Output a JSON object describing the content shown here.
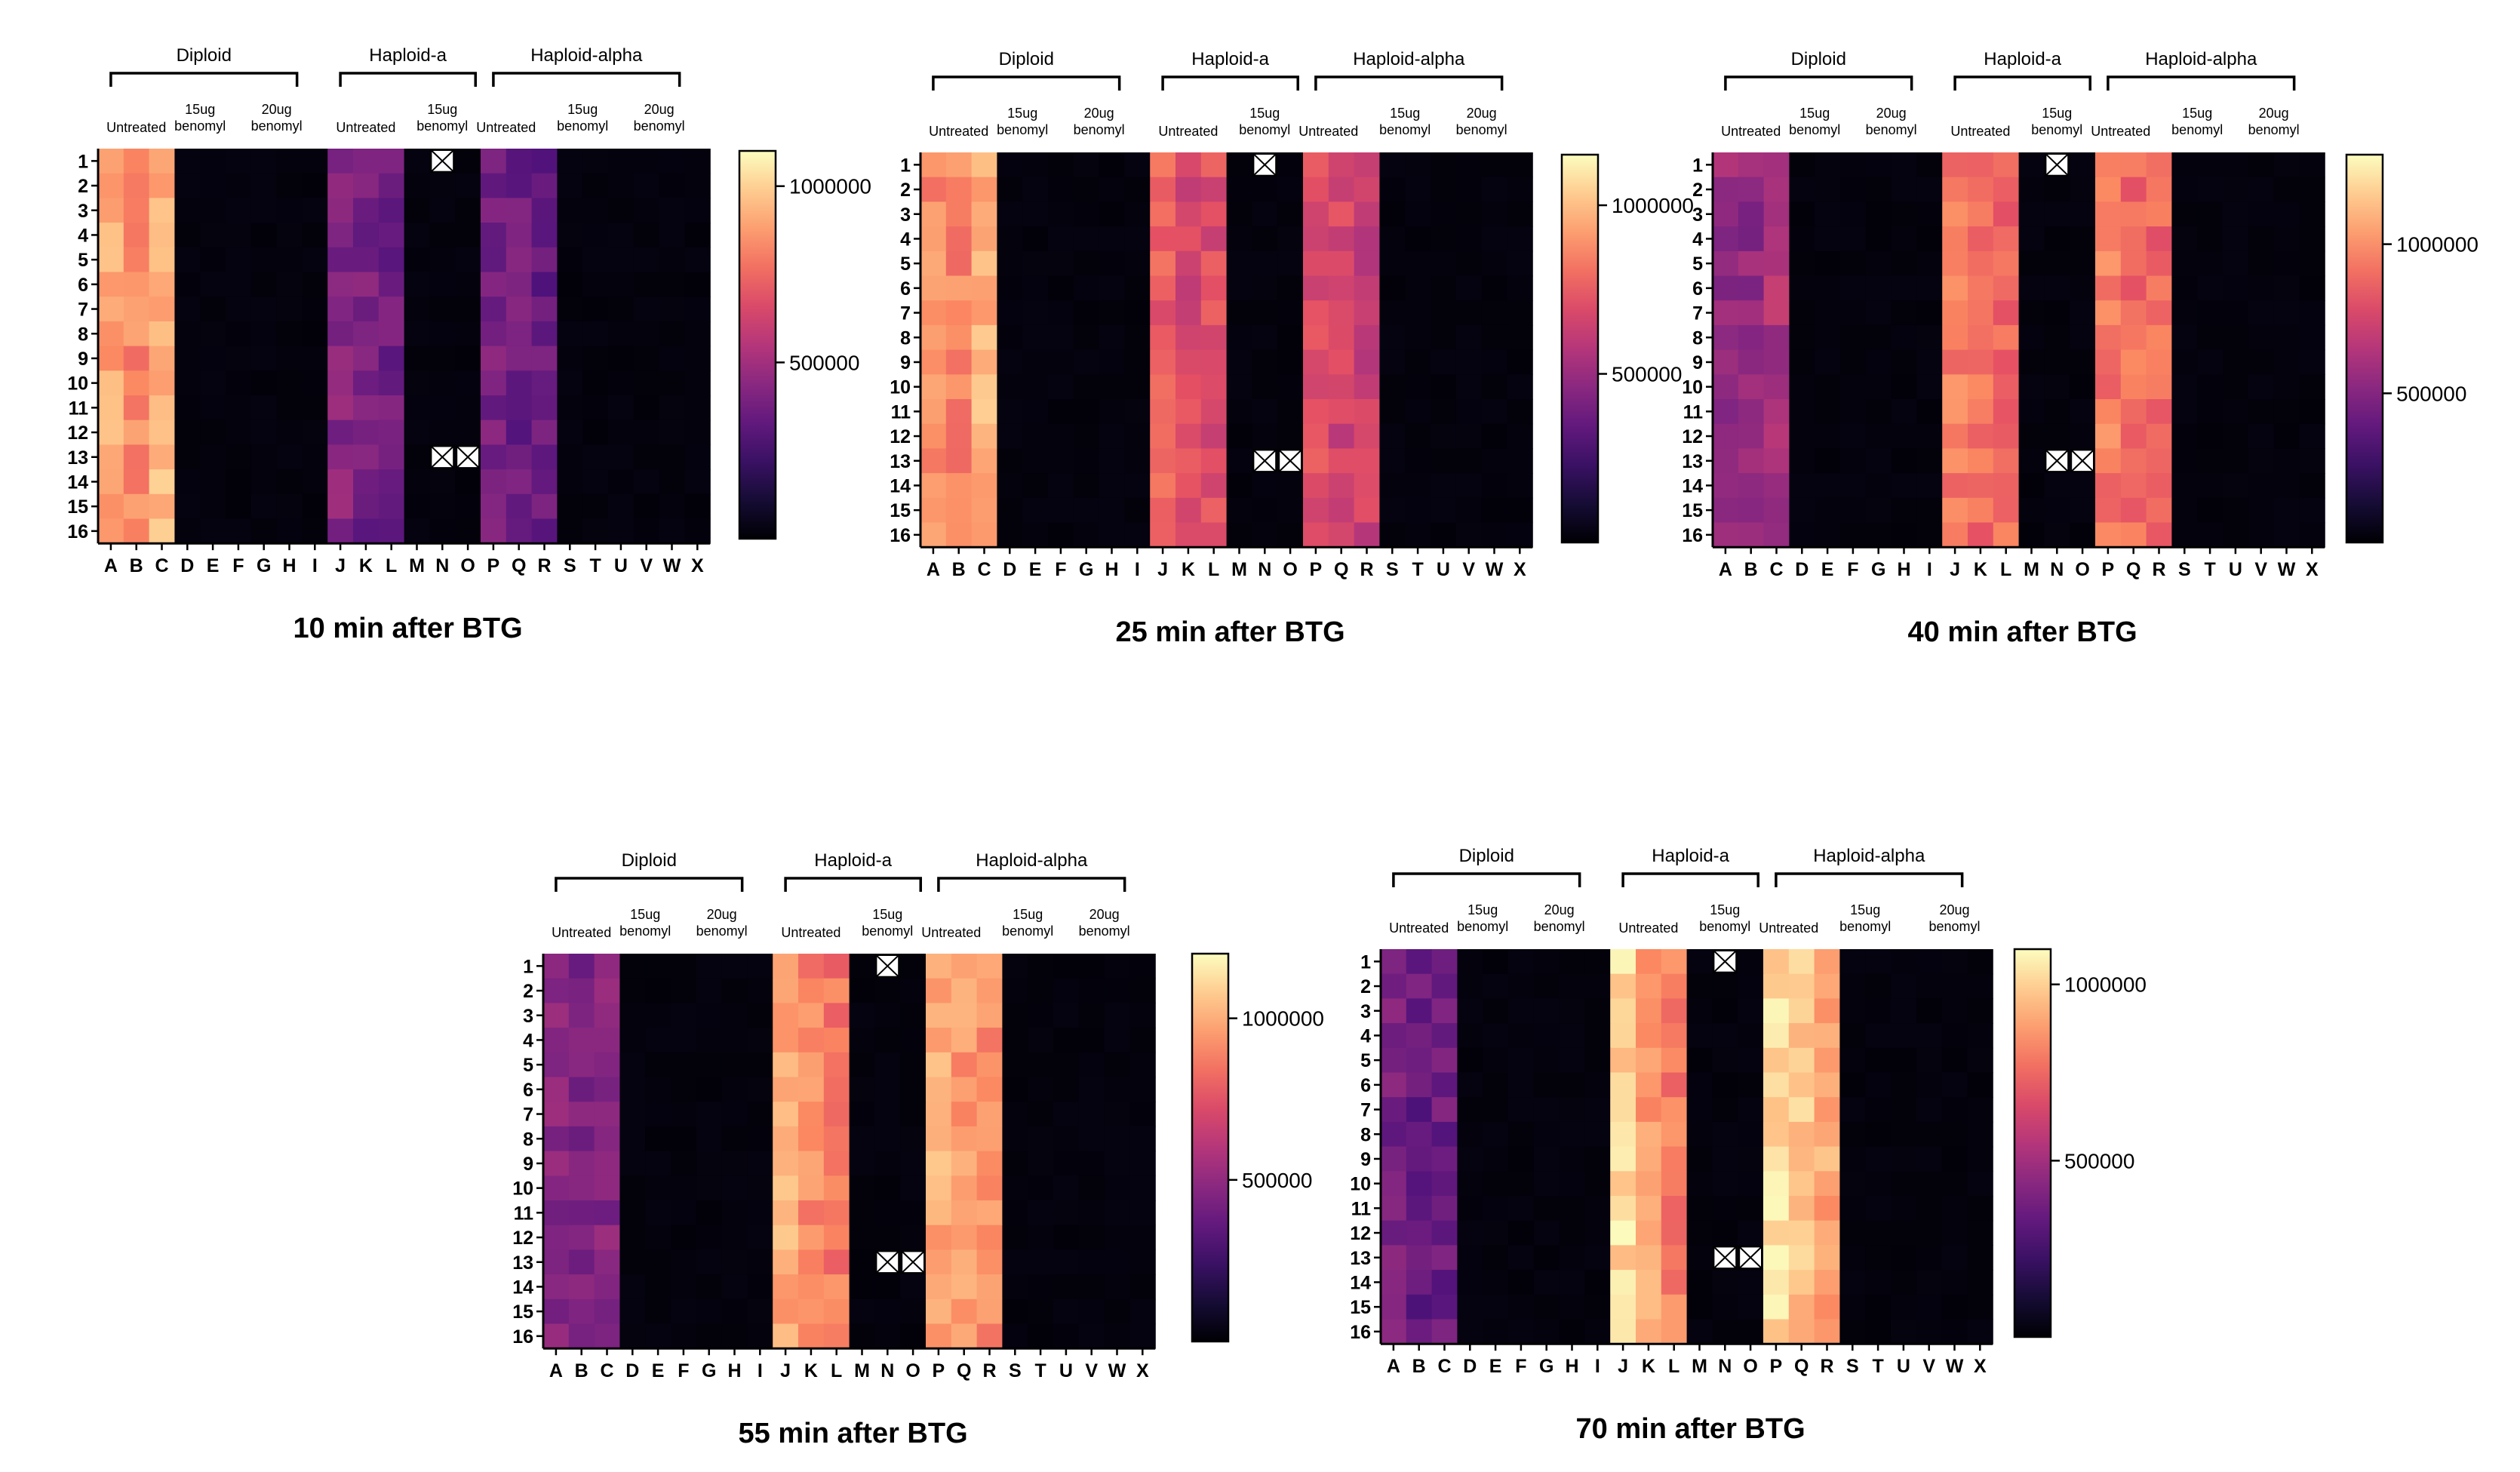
{
  "chart_data": [
    {
      "type": "heatmap",
      "title": "10 min after BTG",
      "groups": [
        {
          "label": "Diploid",
          "cols": [
            "A",
            "H"
          ]
        },
        {
          "label": "Haploid-a",
          "cols": [
            "J",
            "O"
          ]
        },
        {
          "label": "Haploid-alpha",
          "cols": [
            "P",
            "W"
          ]
        }
      ],
      "conditions": [
        {
          "text": "Untreated",
          "cols": [
            "A",
            "C"
          ]
        },
        {
          "text": "15ug benomyl",
          "cols": [
            "D",
            "E"
          ]
        },
        {
          "text": "20ug benomyl",
          "cols": [
            "G",
            "H"
          ]
        },
        {
          "text": "Untreated",
          "cols": [
            "J",
            "L"
          ]
        },
        {
          "text": "15ug benomyl",
          "cols": [
            "N",
            "N"
          ]
        },
        {
          "text": "Untreated",
          "cols": [
            "P",
            "Q"
          ]
        },
        {
          "text": "15ug benomyl",
          "cols": [
            "S",
            "T"
          ]
        },
        {
          "text": "20ug benomyl",
          "cols": [
            "V",
            "W"
          ]
        }
      ],
      "rows": [
        "1",
        "2",
        "3",
        "4",
        "5",
        "6",
        "7",
        "8",
        "9",
        "10",
        "11",
        "12",
        "13",
        "14",
        "15",
        "16"
      ],
      "columns": [
        "A",
        "B",
        "C",
        "D",
        "E",
        "F",
        "G",
        "H",
        "I",
        "J",
        "K",
        "L",
        "M",
        "N",
        "O",
        "P",
        "Q",
        "R",
        "S",
        "T",
        "U",
        "V",
        "W",
        "X"
      ],
      "column_levels": [
        900000,
        820000,
        940000,
        0,
        0,
        0,
        0,
        0,
        0,
        420000,
        380000,
        360000,
        0,
        0,
        0,
        380000,
        360000,
        340000,
        0,
        0,
        0,
        0,
        0,
        0
      ],
      "excluded_cells": [
        [
          "1",
          "N"
        ],
        [
          "13",
          "N"
        ],
        [
          "13",
          "O"
        ]
      ],
      "colorbar": {
        "ticks": [
          500000,
          1000000
        ],
        "max": 1100000
      }
    },
    {
      "type": "heatmap",
      "title": "25 min after BTG",
      "groups": [
        {
          "label": "Diploid",
          "cols": [
            "A",
            "H"
          ]
        },
        {
          "label": "Haploid-a",
          "cols": [
            "J",
            "O"
          ]
        },
        {
          "label": "Haploid-alpha",
          "cols": [
            "P",
            "W"
          ]
        }
      ],
      "conditions": [
        {
          "text": "Untreated",
          "cols": [
            "A",
            "C"
          ]
        },
        {
          "text": "15ug benomyl",
          "cols": [
            "D",
            "E"
          ]
        },
        {
          "text": "20ug benomyl",
          "cols": [
            "G",
            "H"
          ]
        },
        {
          "text": "Untreated",
          "cols": [
            "J",
            "L"
          ]
        },
        {
          "text": "15ug benomyl",
          "cols": [
            "N",
            "N"
          ]
        },
        {
          "text": "Untreated",
          "cols": [
            "P",
            "Q"
          ]
        },
        {
          "text": "15ug benomyl",
          "cols": [
            "S",
            "T"
          ]
        },
        {
          "text": "20ug benomyl",
          "cols": [
            "V",
            "W"
          ]
        }
      ],
      "rows": [
        "1",
        "2",
        "3",
        "4",
        "5",
        "6",
        "7",
        "8",
        "9",
        "10",
        "11",
        "12",
        "13",
        "14",
        "15",
        "16"
      ],
      "columns": [
        "A",
        "B",
        "C",
        "D",
        "E",
        "F",
        "G",
        "H",
        "I",
        "J",
        "K",
        "L",
        "M",
        "N",
        "O",
        "P",
        "Q",
        "R",
        "S",
        "T",
        "U",
        "V",
        "W",
        "X"
      ],
      "column_levels": [
        880000,
        860000,
        980000,
        0,
        0,
        0,
        0,
        0,
        0,
        760000,
        680000,
        700000,
        0,
        0,
        0,
        700000,
        660000,
        640000,
        0,
        0,
        0,
        0,
        0,
        0
      ],
      "excluded_cells": [
        [
          "1",
          "N"
        ],
        [
          "13",
          "N"
        ],
        [
          "13",
          "O"
        ]
      ],
      "colorbar": {
        "ticks": [
          500000,
          1000000
        ],
        "max": 1150000
      }
    },
    {
      "type": "heatmap",
      "title": "40 min after BTG",
      "groups": [
        {
          "label": "Diploid",
          "cols": [
            "A",
            "H"
          ]
        },
        {
          "label": "Haploid-a",
          "cols": [
            "J",
            "O"
          ]
        },
        {
          "label": "Haploid-alpha",
          "cols": [
            "P",
            "W"
          ]
        }
      ],
      "conditions": [
        {
          "text": "Untreated",
          "cols": [
            "A",
            "C"
          ]
        },
        {
          "text": "15ug benomyl",
          "cols": [
            "D",
            "E"
          ]
        },
        {
          "text": "20ug benomyl",
          "cols": [
            "G",
            "H"
          ]
        },
        {
          "text": "Untreated",
          "cols": [
            "J",
            "L"
          ]
        },
        {
          "text": "15ug benomyl",
          "cols": [
            "N",
            "N"
          ]
        },
        {
          "text": "Untreated",
          "cols": [
            "P",
            "Q"
          ]
        },
        {
          "text": "15ug benomyl",
          "cols": [
            "S",
            "T"
          ]
        },
        {
          "text": "20ug benomyl",
          "cols": [
            "V",
            "W"
          ]
        }
      ],
      "rows": [
        "1",
        "2",
        "3",
        "4",
        "5",
        "6",
        "7",
        "8",
        "9",
        "10",
        "11",
        "12",
        "13",
        "14",
        "15",
        "16"
      ],
      "columns": [
        "A",
        "B",
        "C",
        "D",
        "E",
        "F",
        "G",
        "H",
        "I",
        "J",
        "K",
        "L",
        "M",
        "N",
        "O",
        "P",
        "Q",
        "R",
        "S",
        "T",
        "U",
        "V",
        "W",
        "X"
      ],
      "column_levels": [
        560000,
        540000,
        620000,
        0,
        0,
        0,
        0,
        0,
        0,
        960000,
        900000,
        880000,
        0,
        0,
        0,
        940000,
        900000,
        880000,
        0,
        0,
        0,
        0,
        0,
        0
      ],
      "excluded_cells": [
        [
          "1",
          "N"
        ],
        [
          "13",
          "N"
        ],
        [
          "13",
          "O"
        ]
      ],
      "colorbar": {
        "ticks": [
          500000,
          1000000
        ],
        "max": 1300000
      }
    },
    {
      "type": "heatmap",
      "title": "55 min after BTG",
      "groups": [
        {
          "label": "Diploid",
          "cols": [
            "A",
            "H"
          ]
        },
        {
          "label": "Haploid-a",
          "cols": [
            "J",
            "O"
          ]
        },
        {
          "label": "Haploid-alpha",
          "cols": [
            "P",
            "W"
          ]
        }
      ],
      "conditions": [
        {
          "text": "Untreated",
          "cols": [
            "A",
            "C"
          ]
        },
        {
          "text": "15ug benomyl",
          "cols": [
            "D",
            "E"
          ]
        },
        {
          "text": "20ug benomyl",
          "cols": [
            "G",
            "H"
          ]
        },
        {
          "text": "Untreated",
          "cols": [
            "J",
            "L"
          ]
        },
        {
          "text": "15ug benomyl",
          "cols": [
            "N",
            "N"
          ]
        },
        {
          "text": "Untreated",
          "cols": [
            "P",
            "Q"
          ]
        },
        {
          "text": "15ug benomyl",
          "cols": [
            "S",
            "T"
          ]
        },
        {
          "text": "20ug benomyl",
          "cols": [
            "V",
            "W"
          ]
        }
      ],
      "rows": [
        "1",
        "2",
        "3",
        "4",
        "5",
        "6",
        "7",
        "8",
        "9",
        "10",
        "11",
        "12",
        "13",
        "14",
        "15",
        "16"
      ],
      "columns": [
        "A",
        "B",
        "C",
        "D",
        "E",
        "F",
        "G",
        "H",
        "I",
        "J",
        "K",
        "L",
        "M",
        "N",
        "O",
        "P",
        "Q",
        "R",
        "S",
        "T",
        "U",
        "V",
        "W",
        "X"
      ],
      "column_levels": [
        460000,
        440000,
        460000,
        0,
        0,
        0,
        0,
        0,
        0,
        1000000,
        900000,
        860000,
        0,
        0,
        0,
        1000000,
        940000,
        920000,
        0,
        0,
        0,
        0,
        0,
        0
      ],
      "excluded_cells": [
        [
          "1",
          "N"
        ],
        [
          "13",
          "N"
        ],
        [
          "13",
          "O"
        ]
      ],
      "colorbar": {
        "ticks": [
          500000,
          1000000
        ],
        "max": 1200000
      }
    },
    {
      "type": "heatmap",
      "title": "70 min after BTG",
      "groups": [
        {
          "label": "Diploid",
          "cols": [
            "A",
            "H"
          ]
        },
        {
          "label": "Haploid-a",
          "cols": [
            "J",
            "O"
          ]
        },
        {
          "label": "Haploid-alpha",
          "cols": [
            "P",
            "W"
          ]
        }
      ],
      "conditions": [
        {
          "text": "Untreated",
          "cols": [
            "A",
            "C"
          ]
        },
        {
          "text": "15ug benomyl",
          "cols": [
            "D",
            "E"
          ]
        },
        {
          "text": "20ug benomyl",
          "cols": [
            "G",
            "H"
          ]
        },
        {
          "text": "Untreated",
          "cols": [
            "J",
            "L"
          ]
        },
        {
          "text": "15ug benomyl",
          "cols": [
            "N",
            "N"
          ]
        },
        {
          "text": "Untreated",
          "cols": [
            "P",
            "Q"
          ]
        },
        {
          "text": "15ug benomyl",
          "cols": [
            "S",
            "T"
          ]
        },
        {
          "text": "20ug benomyl",
          "cols": [
            "W",
            "W"
          ]
        }
      ],
      "rows": [
        "1",
        "2",
        "3",
        "4",
        "5",
        "6",
        "7",
        "8",
        "9",
        "10",
        "11",
        "12",
        "13",
        "14",
        "15",
        "16"
      ],
      "columns": [
        "A",
        "B",
        "C",
        "D",
        "E",
        "F",
        "G",
        "H",
        "I",
        "J",
        "K",
        "L",
        "M",
        "N",
        "O",
        "P",
        "Q",
        "R",
        "S",
        "T",
        "U",
        "V",
        "W",
        "X"
      ],
      "column_levels": [
        380000,
        340000,
        360000,
        0,
        0,
        0,
        0,
        0,
        0,
        1020000,
        880000,
        800000,
        0,
        0,
        0,
        1040000,
        960000,
        900000,
        0,
        0,
        0,
        0,
        0,
        0
      ],
      "excluded_cells": [
        [
          "1",
          "N"
        ],
        [
          "13",
          "N"
        ],
        [
          "13",
          "O"
        ]
      ],
      "colorbar": {
        "ticks": [
          500000,
          1000000
        ],
        "max": 1100000
      }
    }
  ]
}
